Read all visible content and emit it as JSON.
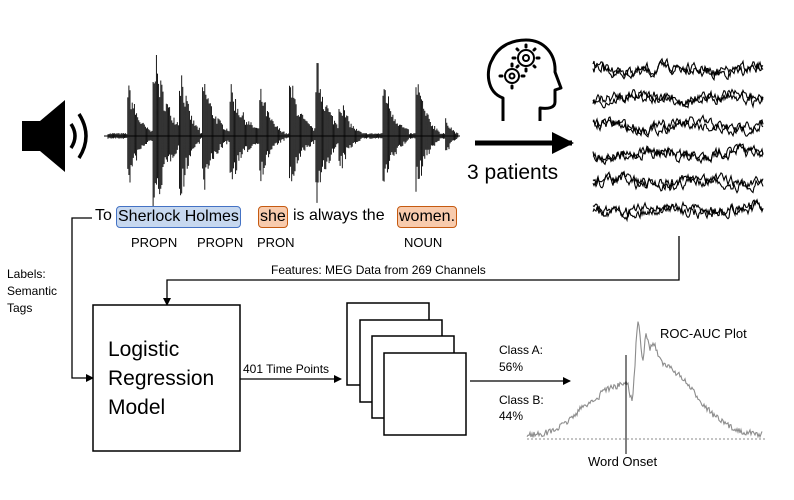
{
  "sentence": {
    "to": "To",
    "sherlock_holmes": "Sherlock Holmes",
    "she": "she",
    "middle": "is always the",
    "women": "women."
  },
  "tags": [
    "PROPN",
    "PROPN",
    "PRON",
    "NOUN"
  ],
  "patients_label": "3 patients",
  "features_label": "Features: MEG Data from 269 Channels",
  "labels_label": [
    "Labels:",
    "Semantic",
    "Tags"
  ],
  "model_label": [
    "Logistic",
    "Regression",
    "Model"
  ],
  "time_points_label": "401 Time Points",
  "class_a": [
    "Class A:",
    "56%"
  ],
  "class_b": [
    "Class B:",
    "44%"
  ],
  "roc_label": "ROC-AUC Plot",
  "onset_label": "Word Onset",
  "colors": {
    "blue_fill": "#c7d8ef",
    "blue_border": "#4472c4",
    "red_fill": "#f8cbad",
    "red_border": "#c55a11"
  },
  "icons": [
    "speaker-icon",
    "head-gears-icon"
  ]
}
